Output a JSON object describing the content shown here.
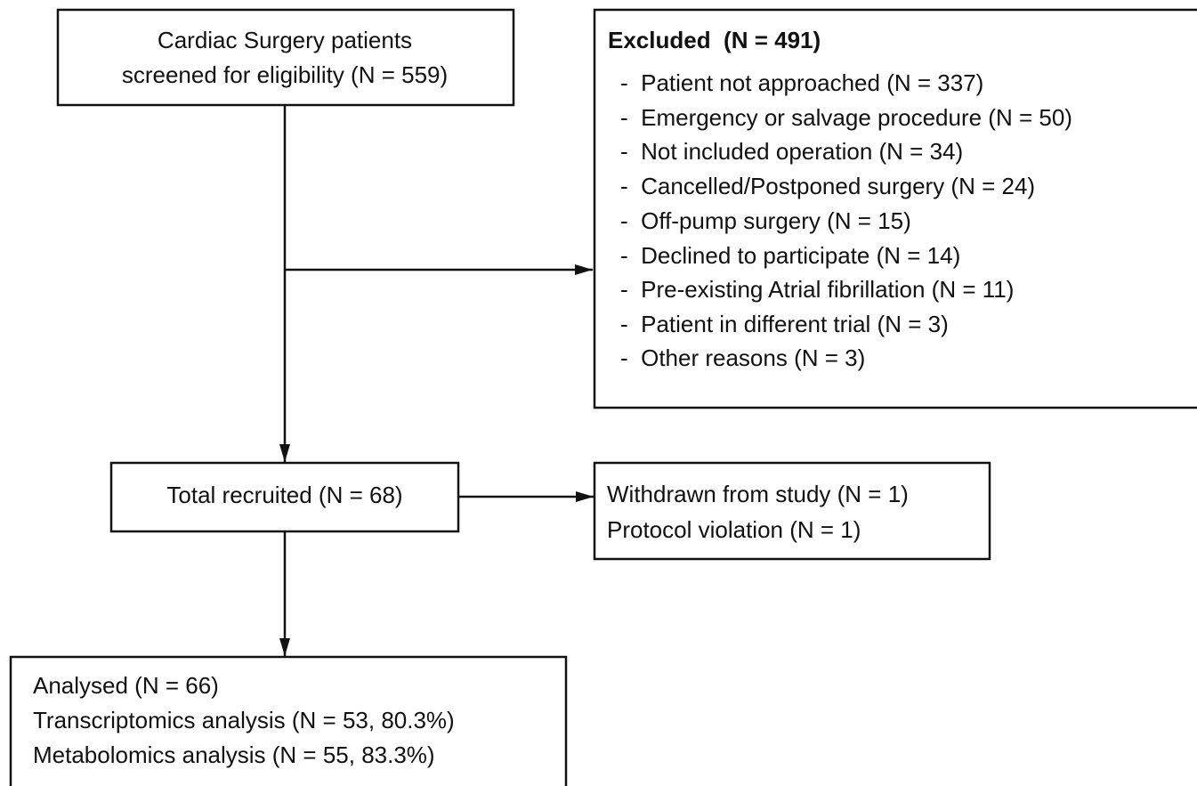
{
  "nodes": [
    {
      "lines": [
        "Cardiac Surgery patients",
        "screened for eligibility (N = 559)"
      ]
    },
    {
      "title": "Excluded  (N = 491)",
      "lines": [
        "-  Patient not approached (N = 337)",
        "-  Emergency or salvage procedure (N = 50)",
        "-  Not included operation (N = 34)",
        "-  Cancelled/Postponed surgery (N = 24)",
        "-  Off-pump surgery (N = 15)",
        "-  Declined to participate (N = 14)",
        "-  Pre-existing Atrial fibrillation (N = 11)",
        "-  Patient in different trial (N = 3)",
        "-  Other reasons (N = 3)"
      ]
    },
    {
      "lines": [
        "Total recruited (N = 68)"
      ]
    },
    {
      "lines": [
        "Withdrawn from study (N = 1)",
        "Protocol violation (N = 1)"
      ]
    },
    {
      "lines": [
        "Analysed (N = 66)",
        "Transcriptomics analysis (N = 53, 80.3%)",
        "Metabolomics analysis (N = 55, 83.3%)"
      ]
    }
  ]
}
